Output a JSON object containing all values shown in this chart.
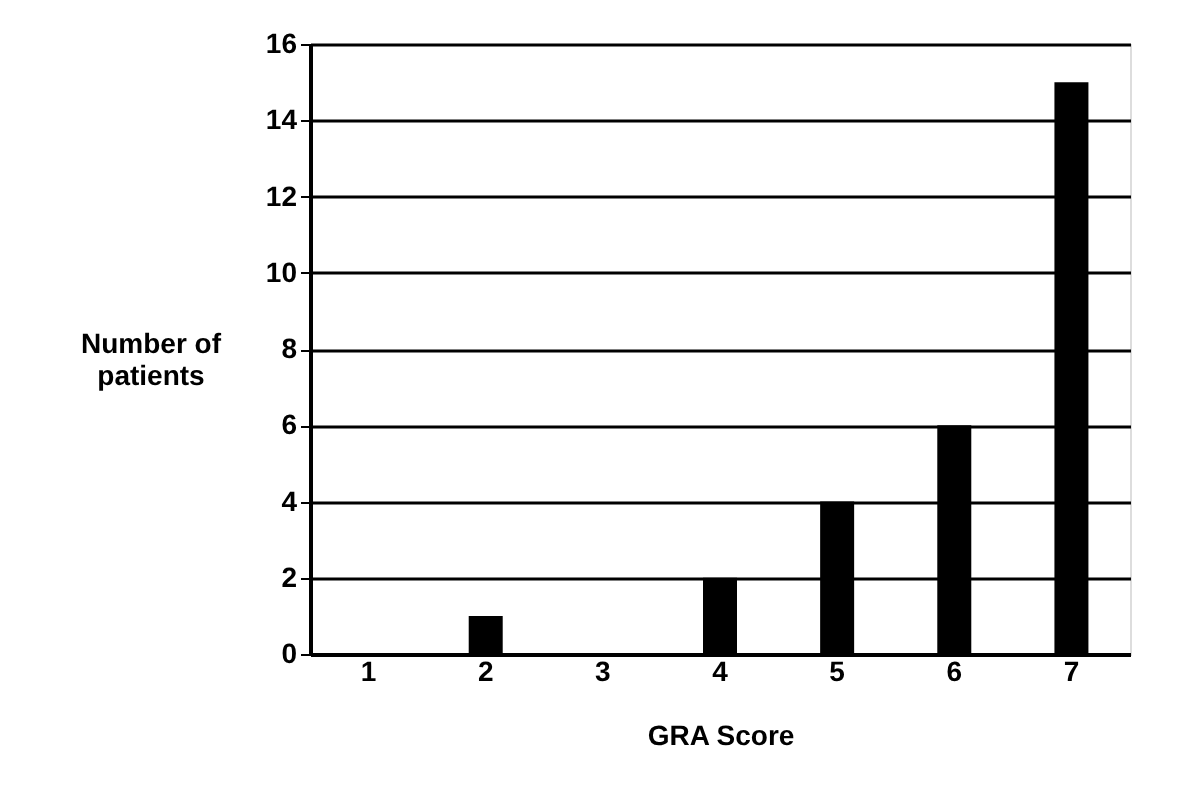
{
  "chart_data": {
    "type": "bar",
    "xlabel": "GRA Score",
    "ylabel": "Number of patients",
    "categories": [
      "1",
      "2",
      "3",
      "4",
      "5",
      "6",
      "7"
    ],
    "values": [
      0,
      1,
      0,
      2,
      4,
      6,
      15
    ],
    "color": "#000000",
    "ylim": [
      0,
      16
    ],
    "yticks": [
      0,
      2,
      4,
      6,
      8,
      10,
      12,
      14,
      16
    ],
    "grid": "y"
  }
}
